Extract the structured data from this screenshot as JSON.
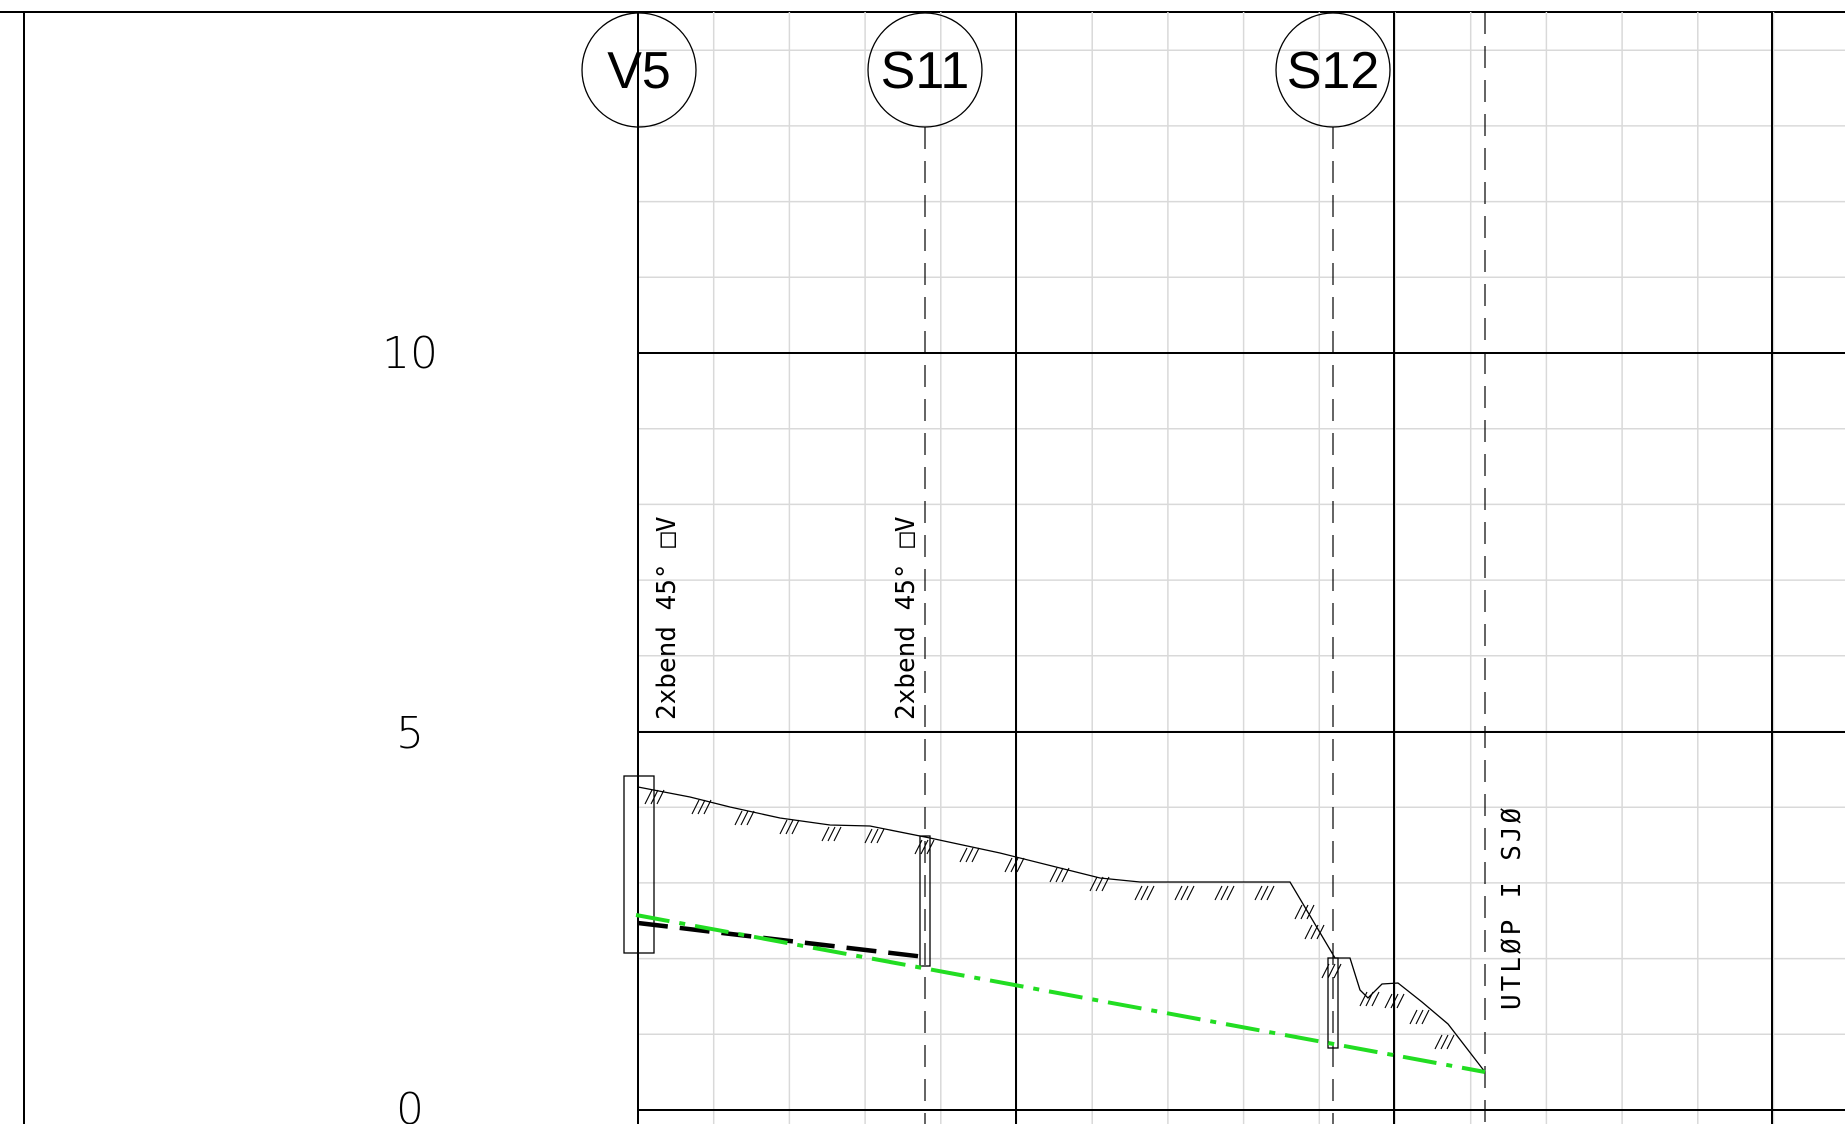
{
  "nodes": [
    {
      "id": "V5",
      "label": "V5"
    },
    {
      "id": "S11",
      "label": "S11"
    },
    {
      "id": "S12",
      "label": "S12"
    }
  ],
  "elevation_scale": {
    "labels": [
      "10",
      "5",
      "0"
    ]
  },
  "annotations": {
    "bend_v5": "2xbend 45° □V",
    "bend_s11": "2xbend 45° □V",
    "outlet": "UTLØP I SJØ"
  },
  "colors": {
    "grid_minor": "#d9d9d9",
    "grid_major": "#000000",
    "pipe_new": "#22dd22",
    "pipe_existing": "#000000",
    "terrain": "#000000"
  }
}
